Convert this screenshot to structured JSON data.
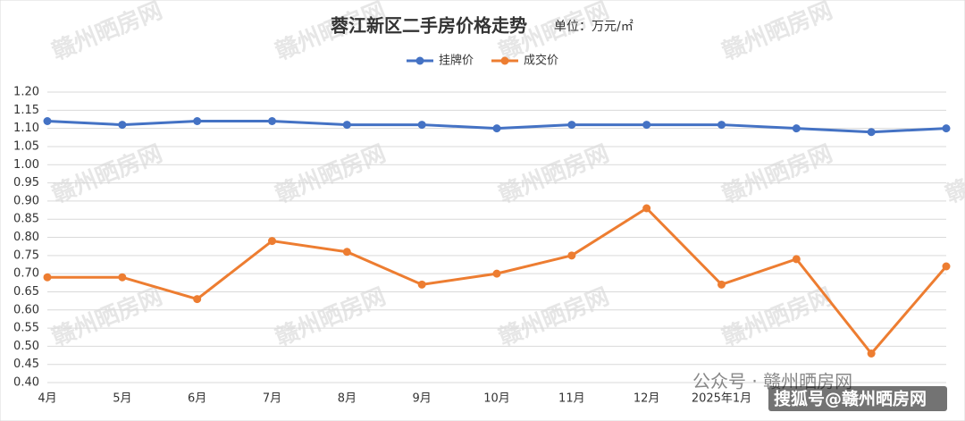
{
  "chart_data": {
    "type": "line",
    "title": "蓉江新区二手房价格走势",
    "subtitle": "单位：万元/㎡",
    "categories": [
      "4月",
      "5月",
      "6月",
      "7月",
      "8月",
      "9月",
      "10月",
      "11月",
      "12月",
      "2025年1月",
      null,
      null,
      null
    ],
    "series": [
      {
        "name": "挂牌价",
        "color": "#4472c4",
        "values": [
          1.12,
          1.11,
          1.12,
          1.12,
          1.11,
          1.11,
          1.1,
          1.11,
          1.11,
          1.11,
          1.1,
          1.09,
          1.1
        ]
      },
      {
        "name": "成交价",
        "color": "#ed7d31",
        "values": [
          0.69,
          0.69,
          0.63,
          0.79,
          0.76,
          0.67,
          0.7,
          0.75,
          0.88,
          0.67,
          0.74,
          0.48,
          0.72
        ]
      }
    ],
    "ylim": [
      0.4,
      1.2
    ],
    "yticks": [
      {
        "value": 0.4,
        "label": "0.40"
      },
      {
        "value": 0.45,
        "label": "0.45"
      },
      {
        "value": 0.5,
        "label": "0.50"
      },
      {
        "value": 0.55,
        "label": "0.55"
      },
      {
        "value": 0.6,
        "label": "0.60"
      },
      {
        "value": 0.65,
        "label": "0.65"
      },
      {
        "value": 0.7,
        "label": "0.70"
      },
      {
        "value": 0.75,
        "label": "0.75"
      },
      {
        "value": 0.8,
        "label": "0.80"
      },
      {
        "value": 0.85,
        "label": "0.85"
      },
      {
        "value": 0.9,
        "label": "0.90"
      },
      {
        "value": 0.95,
        "label": "0.95"
      },
      {
        "value": 1.0,
        "label": "1.00"
      },
      {
        "value": 1.05,
        "label": "1.05"
      },
      {
        "value": 1.1,
        "label": "1.10"
      },
      {
        "value": 1.15,
        "label": "1.15"
      },
      {
        "value": 1.2,
        "label": "1.20"
      }
    ],
    "grid": true,
    "legend": "top"
  },
  "watermark": "赣州晒房网",
  "footer": {
    "wechat": "公众号 · 赣州晒房网",
    "sohu": "搜狐号@赣州晒房网"
  }
}
